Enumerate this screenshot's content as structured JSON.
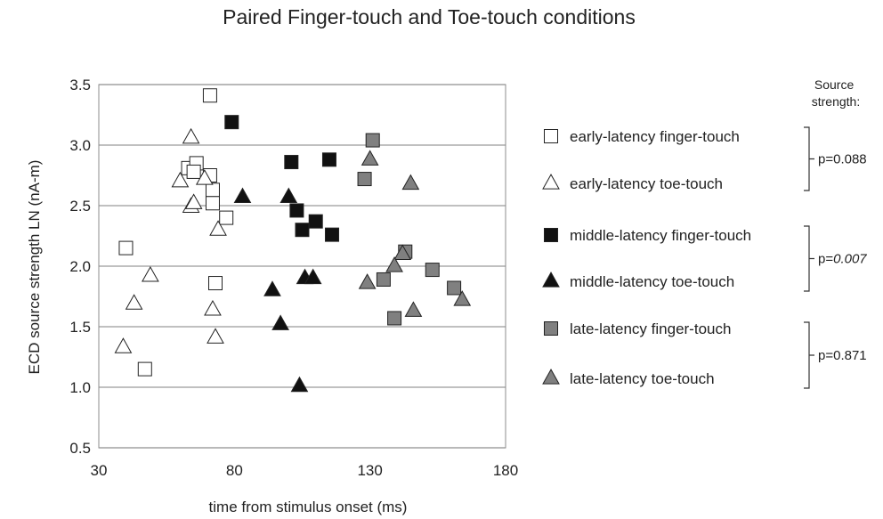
{
  "chart_data": {
    "type": "scatter",
    "title": "Paired Finger-touch and Toe-touch conditions",
    "xlabel": "time from stimulus onset (ms)",
    "ylabel": "ECD source strength LN (nA-m)",
    "xlim": [
      30,
      180
    ],
    "ylim": [
      0.5,
      3.5
    ],
    "xticks": [
      "30",
      "80",
      "130",
      "180"
    ],
    "yticks": [
      "0.5",
      "1.0",
      "1.5",
      "2.0",
      "2.5",
      "3.0",
      "3.5"
    ],
    "grid": "horizontal",
    "legend_position": "right",
    "series": [
      {
        "name": "early-latency finger-touch",
        "marker": "square",
        "fill": "#ffffff",
        "points": [
          [
            71,
            3.41
          ],
          [
            40,
            2.15
          ],
          [
            47,
            1.15
          ],
          [
            63,
            2.81
          ],
          [
            66,
            2.85
          ],
          [
            65,
            2.78
          ],
          [
            71,
            2.75
          ],
          [
            72,
            2.63
          ],
          [
            72,
            2.52
          ],
          [
            77,
            2.4
          ],
          [
            73,
            1.86
          ]
        ]
      },
      {
        "name": "early-latency toe-touch",
        "marker": "triangle",
        "fill": "#ffffff",
        "points": [
          [
            64,
            3.06
          ],
          [
            60,
            2.7
          ],
          [
            69,
            2.72
          ],
          [
            64,
            2.49
          ],
          [
            65,
            2.52
          ],
          [
            74,
            2.3
          ],
          [
            49,
            1.92
          ],
          [
            43,
            1.69
          ],
          [
            39,
            1.33
          ],
          [
            72,
            1.64
          ],
          [
            73,
            1.41
          ]
        ]
      },
      {
        "name": "middle-latency finger-touch",
        "marker": "square",
        "fill": "#111111",
        "points": [
          [
            79,
            3.19
          ],
          [
            101,
            2.86
          ],
          [
            115,
            2.88
          ],
          [
            103,
            2.46
          ],
          [
            105,
            2.3
          ],
          [
            110,
            2.37
          ],
          [
            116,
            2.26
          ]
        ]
      },
      {
        "name": "middle-latency toe-touch",
        "marker": "triangle",
        "fill": "#111111",
        "points": [
          [
            83,
            2.57
          ],
          [
            100,
            2.57
          ],
          [
            94,
            1.8
          ],
          [
            97,
            1.52
          ],
          [
            106,
            1.9
          ],
          [
            109,
            1.9
          ],
          [
            104,
            1.01
          ]
        ]
      },
      {
        "name": "late-latency finger-touch",
        "marker": "square",
        "fill": "#808080",
        "points": [
          [
            131,
            3.04
          ],
          [
            128,
            2.72
          ],
          [
            143,
            2.12
          ],
          [
            153,
            1.97
          ],
          [
            135,
            1.89
          ],
          [
            161,
            1.82
          ],
          [
            139,
            1.57
          ]
        ]
      },
      {
        "name": "late-latency toe-touch",
        "marker": "triangle",
        "fill": "#808080",
        "points": [
          [
            130,
            2.88
          ],
          [
            145,
            2.68
          ],
          [
            142,
            2.1
          ],
          [
            139,
            2.0
          ],
          [
            129,
            1.86
          ],
          [
            146,
            1.63
          ],
          [
            164,
            1.72
          ]
        ]
      }
    ],
    "source_strength_label": "Source strength:",
    "comparisons": [
      {
        "label": "p=",
        "value": "0.088",
        "italic": false
      },
      {
        "label": "p=",
        "value": "0.007",
        "italic": true
      },
      {
        "label": "p=",
        "value": "0.871",
        "italic": false
      }
    ]
  },
  "colors": {
    "grid": "#9a9a9a",
    "frame": "#8c8c8c",
    "marker_stroke": "#222222"
  }
}
